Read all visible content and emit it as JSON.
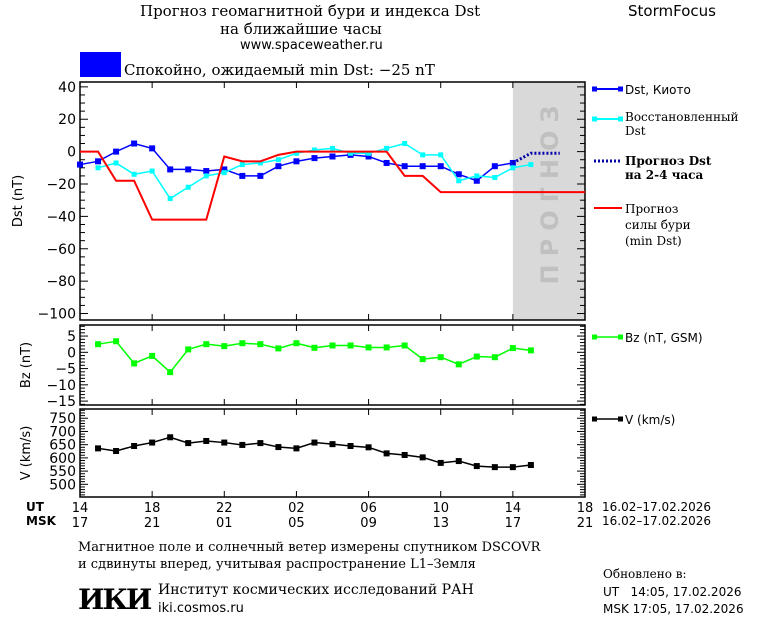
{
  "header": {
    "title_line1": "Прогноз геомагнитной бури и индекса Dst",
    "title_line2": "на ближайшие часы",
    "url": "www.spaceweather.ru",
    "brand": "StormFocus",
    "status_text": "Спокойно, ожидаемый min Dst: −25 nT",
    "status_color": "#0000ff"
  },
  "legend": {
    "dst_kyoto": "Dst, Киото",
    "dst_restored_1": "Восстановленный",
    "dst_restored_2": "Dst",
    "forecast_1": "Прогноз Dst",
    "forecast_2": "на 2-4 часа",
    "storm_1": "Прогноз",
    "storm_2": "силы бури",
    "storm_3": "(min Dst)",
    "bz": "Bz (nT, GSM)",
    "v": "V (km/s)"
  },
  "forecast_zone_label": "ПРОГНОЗ",
  "time_axis": {
    "ut_label": "UT",
    "msk_label": "MSK",
    "ut_ticks": [
      "14",
      "18",
      "22",
      "02",
      "06",
      "10",
      "14",
      "18"
    ],
    "msk_ticks": [
      "17",
      "21",
      "01",
      "05",
      "09",
      "13",
      "17",
      "21"
    ],
    "ut_range": "16.02–17.02.2026",
    "msk_range": "16.02–17.02.2026"
  },
  "footer": {
    "note_line1": "Магнитное поле и солнечный ветер измерены спутником DSCOVR",
    "note_line2": "и сдвинуты вперед, учитывая распространение L1–Земля",
    "institute": "Институт космических исследований РАН",
    "institute_url": "iki.cosmos.ru",
    "logo_text": "ИКИ",
    "updated_label": "Обновлено в:",
    "updated_ut": "UT   14:05, 17.02.2026",
    "updated_msk": "MSK 17:05, 17.02.2026"
  },
  "chart_data": [
    {
      "type": "line",
      "ylabel": "Dst (nT)",
      "x_units": "hours UT from 16.02 00:00",
      "xlim": [
        14,
        42
      ],
      "ylim": [
        -104,
        43
      ],
      "yticks": [
        40,
        20,
        0,
        -20,
        -40,
        -60,
        -80,
        -100
      ],
      "forecast_region": [
        38,
        42
      ],
      "series": [
        {
          "name": "Dst, Киото",
          "color": "#0000ff",
          "x": [
            14,
            15,
            16,
            17,
            18,
            19,
            20,
            21,
            22,
            23,
            24,
            25,
            26,
            27,
            28,
            29,
            30,
            31,
            32,
            33,
            34,
            35,
            36,
            37,
            38
          ],
          "y": [
            -8,
            -6,
            0,
            5,
            2,
            -11,
            -11,
            -12,
            -11,
            -15,
            -15,
            -9,
            -6,
            -4,
            -3,
            -2,
            -3,
            -7,
            -9,
            -9,
            -9,
            -14,
            -18,
            -9,
            -7
          ]
        },
        {
          "name": "Восстановленный Dst",
          "color": "#00ffff",
          "x": [
            15,
            16,
            17,
            18,
            19,
            20,
            21,
            22,
            23,
            24,
            25,
            26,
            27,
            28,
            29,
            30,
            31,
            32,
            33,
            34,
            35,
            36,
            37,
            38,
            39
          ],
          "y": [
            -10,
            -7,
            -14,
            -12,
            -29,
            -22,
            -15,
            -13,
            -8,
            -7,
            -5,
            -1,
            1,
            2,
            -1,
            -1,
            2,
            5,
            -2,
            -2,
            -18,
            -15,
            -16,
            -10,
            -8
          ]
        },
        {
          "name": "Прогноз Dst на 2-4 часа",
          "color": "#0000aa",
          "x": [
            38,
            39,
            40.6
          ],
          "y": [
            -7,
            -1,
            -1
          ]
        },
        {
          "name": "Прогноз силы бури (min Dst)",
          "color": "#ff0000",
          "x": [
            14,
            15,
            16,
            17,
            18,
            21,
            22,
            23,
            24,
            25,
            26,
            31,
            32,
            33,
            34,
            42
          ],
          "y": [
            0,
            0,
            -18,
            -18,
            -42,
            -42,
            -3,
            -6,
            -6,
            -2,
            0,
            0,
            -15,
            -15,
            -25,
            -25
          ]
        }
      ]
    },
    {
      "type": "line",
      "ylabel": "Bz (nT)",
      "xlim": [
        14,
        42
      ],
      "ylim": [
        -16.2,
        8.4
      ],
      "yticks": [
        5,
        0,
        -5,
        -10,
        -15
      ],
      "series": [
        {
          "name": "Bz (nT, GSM)",
          "color": "#00ff00",
          "x": [
            15,
            16,
            17,
            18,
            19,
            20,
            21,
            22,
            23,
            24,
            25,
            26,
            27,
            28,
            29,
            30,
            31,
            32,
            33,
            34,
            35,
            36,
            37,
            38,
            39
          ],
          "y": [
            2.5,
            3.4,
            -3.4,
            -1.1,
            -6.1,
            0.9,
            2.5,
            1.9,
            2.8,
            2.5,
            1.2,
            2.8,
            1.4,
            2.1,
            2.1,
            1.5,
            1.5,
            2.1,
            -2.1,
            -1.5,
            -3.7,
            -1.3,
            -1.5,
            1.3,
            0.6
          ]
        }
      ]
    },
    {
      "type": "line",
      "ylabel": "V (km/s)",
      "xlim": [
        14,
        42
      ],
      "ylim": [
        452,
        785
      ],
      "yticks": [
        750,
        700,
        650,
        600,
        550,
        500
      ],
      "series": [
        {
          "name": "V (km/s)",
          "color": "#000000",
          "x": [
            15,
            16,
            17,
            18,
            19,
            20,
            21,
            22,
            23,
            24,
            25,
            26,
            27,
            28,
            29,
            30,
            31,
            32,
            33,
            34,
            35,
            36,
            37,
            38,
            39
          ],
          "y": [
            636,
            626,
            645,
            658,
            678,
            656,
            664,
            658,
            649,
            656,
            641,
            636,
            658,
            652,
            645,
            640,
            617,
            611,
            602,
            581,
            588,
            569,
            565,
            565,
            573
          ]
        }
      ]
    }
  ]
}
